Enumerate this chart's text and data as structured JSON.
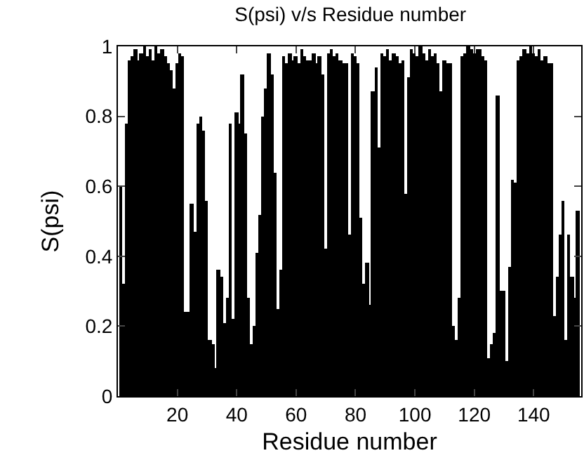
{
  "chart_data": {
    "type": "bar",
    "title": "S(psi) v/s Residue number",
    "xlabel": "Residue number",
    "ylabel": "S(psi)",
    "x": [
      1,
      2,
      3,
      4,
      5,
      6,
      7,
      8,
      9,
      10,
      11,
      12,
      13,
      14,
      15,
      16,
      17,
      18,
      19,
      20,
      21,
      22,
      23,
      24,
      25,
      26,
      27,
      28,
      29,
      30,
      31,
      32,
      33,
      34,
      35,
      36,
      37,
      38,
      39,
      40,
      41,
      42,
      43,
      44,
      45,
      46,
      47,
      48,
      49,
      50,
      51,
      52,
      53,
      54,
      55,
      56,
      57,
      58,
      59,
      60,
      61,
      62,
      63,
      64,
      65,
      66,
      67,
      68,
      69,
      70,
      71,
      72,
      73,
      74,
      75,
      76,
      77,
      78,
      79,
      80,
      81,
      82,
      83,
      84,
      85,
      86,
      87,
      88,
      89,
      90,
      91,
      92,
      93,
      94,
      95,
      96,
      97,
      98,
      99,
      100,
      101,
      102,
      103,
      104,
      105,
      106,
      107,
      108,
      109,
      110,
      111,
      112,
      113,
      114,
      115,
      116,
      117,
      118,
      119,
      120,
      121,
      122,
      123,
      124,
      125,
      126,
      127,
      128,
      129,
      130,
      131,
      132,
      133,
      134,
      135,
      136,
      137,
      138,
      139,
      140,
      141,
      142,
      143,
      144,
      145,
      146,
      147,
      148,
      149,
      150,
      151,
      152,
      153,
      154,
      155
    ],
    "values": [
      0.6,
      0.32,
      0.78,
      0.96,
      0.97,
      0.99,
      0.96,
      0.98,
      1,
      0.97,
      0.99,
      0.96,
      1,
      0.98,
      0.99,
      0.97,
      0.95,
      0.93,
      0.88,
      0.95,
      0.98,
      0.97,
      0.24,
      0.24,
      0.55,
      0.47,
      0.78,
      0.8,
      0.76,
      0.56,
      0.16,
      0.15,
      0.08,
      0.36,
      0.34,
      0.21,
      0.28,
      0.78,
      0.22,
      0.81,
      0.78,
      0.92,
      0.75,
      0.28,
      0.15,
      0.2,
      0.41,
      0.52,
      0.8,
      0.88,
      0.98,
      0.92,
      0.64,
      0.25,
      0.36,
      0.97,
      0.95,
      0.98,
      0.96,
      0.97,
      0.95,
      0.99,
      0.97,
      0.96,
      0.96,
      0.98,
      0.95,
      0.97,
      0.92,
      0.42,
      0.98,
      0.99,
      0.97,
      0.98,
      0.96,
      0.95,
      0.95,
      0.46,
      0.98,
      0.97,
      0.95,
      0.51,
      0.32,
      0.38,
      0.26,
      0.87,
      0.94,
      0.71,
      0.98,
      0.97,
      0.99,
      0.96,
      0.98,
      0.97,
      0.95,
      0.96,
      0.58,
      0.91,
      0.99,
      0.98,
      0.97,
      1,
      0.98,
      0.96,
      0.99,
      0.97,
      0.98,
      0.95,
      0.87,
      0.96,
      0.95,
      0.95,
      0.2,
      0.16,
      0.28,
      0.97,
      0.98,
      1,
      0.99,
      0.98,
      0.99,
      0.99,
      0.97,
      0.96,
      0.11,
      0.15,
      0.18,
      0.86,
      0.3,
      0.3,
      0.1,
      0.37,
      0.62,
      0.61,
      0.96,
      0.97,
      0.99,
      0.98,
      1,
      0.98,
      0.97,
      0.99,
      0.96,
      0.97,
      0.95,
      0.95,
      0.23,
      0.34,
      0.46,
      0.56,
      0.16,
      0.46,
      0.34,
      0.28,
      0.53
    ],
    "color": "#000000",
    "xlim": [
      0,
      156
    ],
    "xticks": [
      20,
      40,
      60,
      80,
      100,
      120,
      140
    ],
    "ylim": [
      0,
      1
    ],
    "yticks": [
      0,
      0.2,
      0.4,
      0.6,
      0.8,
      1
    ]
  }
}
